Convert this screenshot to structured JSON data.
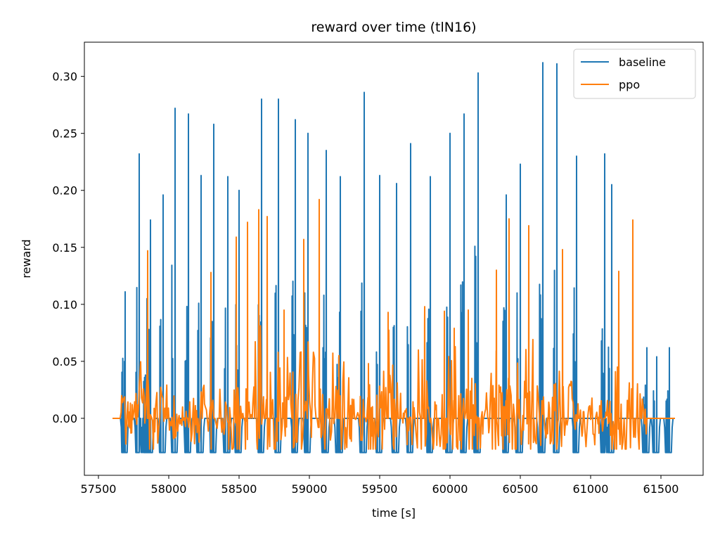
{
  "chart_data": {
    "type": "line",
    "title": "reward over time (tlN16)",
    "xlabel": "time [s]",
    "ylabel": "reward",
    "xlim": [
      57400,
      61800
    ],
    "ylim": [
      -0.05,
      0.33
    ],
    "xticks": [
      57500,
      58000,
      58500,
      59000,
      59500,
      60000,
      60500,
      61000,
      61500
    ],
    "yticks": [
      0.0,
      0.05,
      0.1,
      0.15,
      0.2,
      0.25,
      0.3
    ],
    "ytick_labels": [
      "0.00",
      "0.05",
      "0.10",
      "0.15",
      "0.20",
      "0.25",
      "0.30"
    ],
    "legend_position": "upper right",
    "grid": false,
    "series": [
      {
        "name": "baseline",
        "color": "#1f77b4",
        "x_range": [
          57600,
          61600
        ],
        "baseline_value": 0.0,
        "trough_value": -0.03,
        "peaks": [
          [
            57690,
            0.111
          ],
          [
            57790,
            0.232
          ],
          [
            57845,
            0.105
          ],
          [
            57870,
            0.174
          ],
          [
            57960,
            0.196
          ],
          [
            58045,
            0.272
          ],
          [
            58140,
            0.267
          ],
          [
            58230,
            0.213
          ],
          [
            58320,
            0.258
          ],
          [
            58420,
            0.212
          ],
          [
            58500,
            0.2
          ],
          [
            58660,
            0.28
          ],
          [
            58780,
            0.28
          ],
          [
            58900,
            0.262
          ],
          [
            58990,
            0.25
          ],
          [
            59120,
            0.235
          ],
          [
            59220,
            0.212
          ],
          [
            59390,
            0.286
          ],
          [
            59500,
            0.213
          ],
          [
            59620,
            0.206
          ],
          [
            59720,
            0.241
          ],
          [
            59860,
            0.212
          ],
          [
            60000,
            0.25
          ],
          [
            60100,
            0.267
          ],
          [
            60200,
            0.303
          ],
          [
            60400,
            0.196
          ],
          [
            60500,
            0.223
          ],
          [
            60660,
            0.312
          ],
          [
            60760,
            0.311
          ],
          [
            60900,
            0.23
          ],
          [
            61100,
            0.232
          ],
          [
            61150,
            0.205
          ],
          [
            61400,
            0.062
          ],
          [
            61470,
            0.054
          ],
          [
            61560,
            0.062
          ]
        ]
      },
      {
        "name": "ppo",
        "color": "#ff7f0e",
        "x_range": [
          57600,
          61600
        ],
        "baseline_value": 0.0,
        "active_range": [
          57650,
          61400
        ],
        "peaks": [
          [
            57850,
            0.147
          ],
          [
            58300,
            0.128
          ],
          [
            58480,
            0.159
          ],
          [
            58560,
            0.172
          ],
          [
            58640,
            0.183
          ],
          [
            58700,
            0.177
          ],
          [
            58820,
            0.095
          ],
          [
            58960,
            0.157
          ],
          [
            59070,
            0.192
          ],
          [
            59210,
            0.055
          ],
          [
            59420,
            0.048
          ],
          [
            59560,
            0.093
          ],
          [
            59820,
            0.098
          ],
          [
            59960,
            0.094
          ],
          [
            60030,
            0.079
          ],
          [
            60130,
            0.095
          ],
          [
            60330,
            0.13
          ],
          [
            60420,
            0.175
          ],
          [
            60560,
            0.169
          ],
          [
            60800,
            0.148
          ],
          [
            61200,
            0.129
          ],
          [
            61300,
            0.174
          ]
        ]
      }
    ]
  }
}
